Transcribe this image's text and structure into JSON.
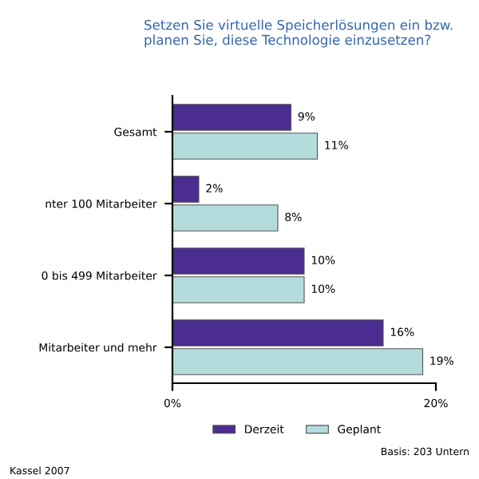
{
  "chart_data": {
    "type": "bar",
    "orientation": "horizontal",
    "title": "Setzen Sie virtuelle Speicherlösungen ein bzw. planen Sie, diese Technologie einzusetzen?",
    "categories": [
      "Gesamt",
      "nter 100 Mitarbeiter",
      "0 bis 499 Mitarbeiter",
      "Mitarbeiter und mehr"
    ],
    "series": [
      {
        "name": "Derzeit",
        "color": "#4b2c8f",
        "values": [
          9,
          2,
          10,
          16
        ],
        "value_labels": [
          "9%",
          "2%",
          "10%",
          "16%"
        ]
      },
      {
        "name": "Geplant",
        "color": "#b4dcdc",
        "values": [
          11,
          8,
          10,
          19
        ],
        "value_labels": [
          "11%",
          "8%",
          "10%",
          "19%"
        ]
      }
    ],
    "xlim": [
      0,
      20
    ],
    "xticks": [
      {
        "value": 0,
        "label": "0%"
      },
      {
        "value": 20,
        "label": "20%"
      }
    ],
    "legend": "bottom",
    "grid": false,
    "annotations": [
      "Basis: 203 Untern",
      "Kassel 2007"
    ]
  }
}
